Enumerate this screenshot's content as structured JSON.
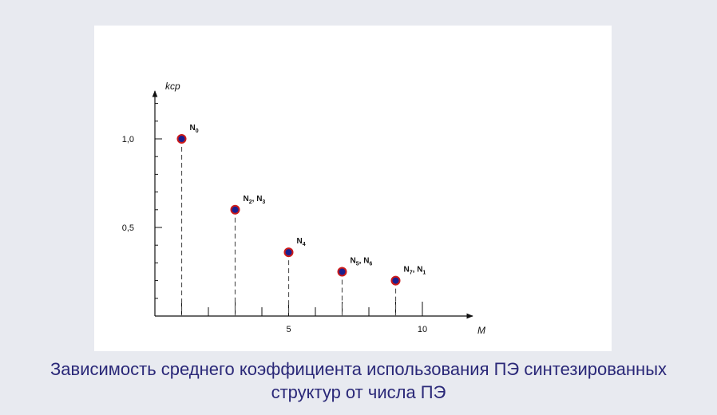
{
  "chart_data": {
    "type": "scatter",
    "style": "stem",
    "x": [
      1,
      3,
      5,
      7,
      9
    ],
    "y": [
      1.0,
      0.6,
      0.36,
      0.25,
      0.2
    ],
    "point_labels": [
      {
        "main": "N",
        "sub": "0"
      },
      {
        "main": "N",
        "sub": "2",
        "main2": ", N",
        "sub2": "3"
      },
      {
        "main": "N",
        "sub": "4"
      },
      {
        "main": "N",
        "sub": "5",
        "main2": ", N",
        "sub2": "6"
      },
      {
        "main": "N",
        "sub": "7",
        "main2": ", N",
        "sub2": "1"
      }
    ],
    "xlabel": "M",
    "ylabel": "kср",
    "xlim": [
      0,
      11.5
    ],
    "ylim": [
      0,
      1.3
    ],
    "x_ticks": [
      5,
      10
    ],
    "y_ticks": [
      "1,0",
      "0,5"
    ],
    "grid": false,
    "marker_color": "#1a1f8f",
    "marker_edge_color": "#cc1a1a",
    "stem_color": "#555555"
  },
  "caption": {
    "line1": "Зависимость среднего коэффициента использования ПЭ синтезированных",
    "line2": "структур от числа ПЭ"
  }
}
